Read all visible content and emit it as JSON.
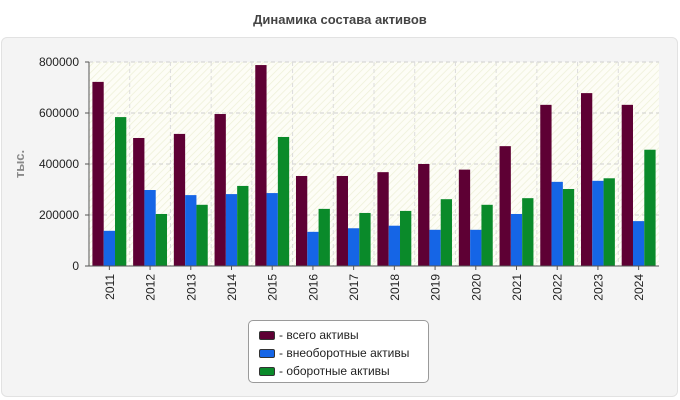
{
  "chart_data": {
    "type": "bar",
    "title": "Динамика состава активов",
    "ylabel": "тыс.",
    "xlabel": "",
    "ylim": [
      0,
      800000
    ],
    "yticks": [
      0,
      200000,
      400000,
      600000,
      800000
    ],
    "grid": true,
    "legend_position": "bottom-center",
    "categories": [
      "2011",
      "2012",
      "2013",
      "2014",
      "2015",
      "2016",
      "2017",
      "2018",
      "2019",
      "2020",
      "2021",
      "2022",
      "2023",
      "2024"
    ],
    "series": [
      {
        "name": "- всего активы",
        "color": "#5e0034",
        "values": [
          722000,
          502000,
          518000,
          596000,
          788000,
          353000,
          353000,
          368000,
          400000,
          378000,
          470000,
          632000,
          678000,
          632000
        ]
      },
      {
        "name": "- внеоборотные активы",
        "color": "#1565e6",
        "values": [
          138000,
          298000,
          278000,
          282000,
          286000,
          134000,
          148000,
          158000,
          142000,
          142000,
          204000,
          330000,
          334000,
          176000
        ]
      },
      {
        "name": "- оборотные активы",
        "color": "#0a8a2a",
        "values": [
          584000,
          204000,
          240000,
          314000,
          506000,
          224000,
          208000,
          216000,
          262000,
          240000,
          266000,
          302000,
          344000,
          456000
        ]
      }
    ]
  }
}
